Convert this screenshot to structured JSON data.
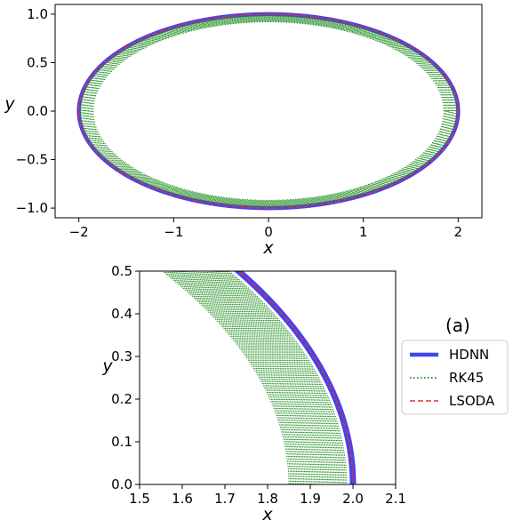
{
  "chart_data": [
    {
      "type": "line",
      "title": "",
      "xlabel": "x",
      "ylabel": "y",
      "xlim": [
        -2.25,
        2.25
      ],
      "ylim": [
        -1.1,
        1.1
      ],
      "xticks": [
        -2,
        -1,
        0,
        1,
        2
      ],
      "xtick_labels": [
        "−2",
        "−1",
        "0",
        "1",
        "2"
      ],
      "yticks": [
        -1.0,
        -0.5,
        0.0,
        0.5,
        1.0
      ],
      "ytick_labels": [
        "−1.0",
        "−0.5",
        "0.0",
        "0.5",
        "1.0"
      ],
      "grid": false,
      "series": [
        {
          "name": "HDNN",
          "shape": "ellipse",
          "a": 2.0,
          "b": 1.0,
          "style": "solid",
          "color": "#4444ee"
        },
        {
          "name": "RK45",
          "shape": "ellipse-band",
          "a_outer": 1.985,
          "a_inner": 1.85,
          "b_outer": 0.985,
          "b_inner": 0.92,
          "style": "dotted",
          "color": "#1a8a1a"
        },
        {
          "name": "LSODA",
          "shape": "ellipse",
          "a": 2.0,
          "b": 1.0,
          "style": "dashed",
          "color": "#e03030"
        }
      ]
    },
    {
      "type": "line",
      "title": "",
      "xlabel": "x",
      "ylabel": "y",
      "xlim": [
        1.5,
        2.1
      ],
      "ylim": [
        0.0,
        0.5
      ],
      "xticks": [
        1.5,
        1.6,
        1.7,
        1.8,
        1.9,
        2.0,
        2.1
      ],
      "xtick_labels": [
        "1.5",
        "1.6",
        "1.7",
        "1.8",
        "1.9",
        "2.0",
        "2.1"
      ],
      "yticks": [
        0.0,
        0.1,
        0.2,
        0.3,
        0.4,
        0.5
      ],
      "ytick_labels": [
        "0.0",
        "0.1",
        "0.2",
        "0.3",
        "0.4",
        "0.5"
      ],
      "grid": false,
      "panel_label": "(a)",
      "legend_placement": "right",
      "legend": [
        "HDNN",
        "RK45",
        "LSODA"
      ]
    }
  ],
  "colors": {
    "hdnn": "#4444ee",
    "rk45": "#1a8a1a",
    "lsoda": "#e03030"
  }
}
